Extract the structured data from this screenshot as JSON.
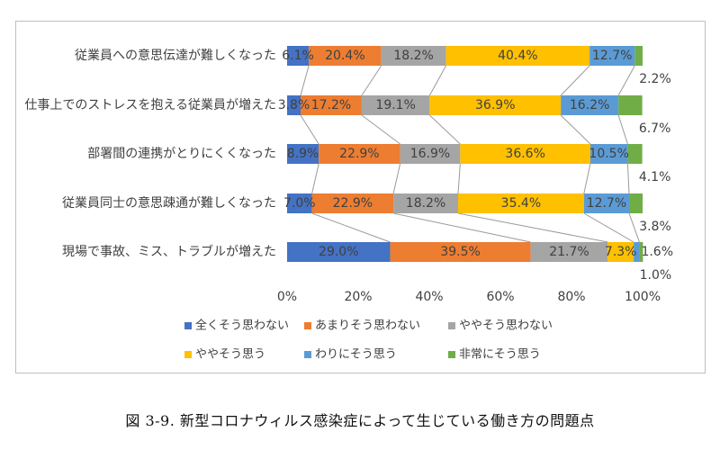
{
  "chart_data": {
    "type": "bar",
    "stacked": true,
    "orientation": "horizontal",
    "percent": true,
    "categories": [
      "従業員への意思伝達が難しくなった",
      "仕事上でのストレスを抱える従業員が増えた",
      "部署間の連携がとりにくくなった",
      "従業員同士の意思疎通が難しくなった",
      "現場で事故、ミス、トラブルが増えた"
    ],
    "series": [
      {
        "name": "全くそう思わない",
        "color": "#4472C4",
        "values": [
          6.1,
          3.8,
          8.9,
          7.0,
          29.0
        ]
      },
      {
        "name": "あまりそう思わない",
        "color": "#ED7D31",
        "values": [
          20.4,
          17.2,
          22.9,
          22.9,
          39.5
        ]
      },
      {
        "name": "ややそう思わない",
        "color": "#A5A5A5",
        "values": [
          18.2,
          19.1,
          16.9,
          18.2,
          21.7
        ]
      },
      {
        "name": "ややそう思う",
        "color": "#FFC000",
        "values": [
          40.4,
          36.9,
          36.6,
          35.4,
          7.3
        ]
      },
      {
        "name": "わりにそう思う",
        "color": "#5B9BD5",
        "values": [
          12.7,
          16.2,
          10.5,
          12.7,
          1.6
        ]
      },
      {
        "name": "非常にそう思う",
        "color": "#70AD47",
        "values": [
          2.2,
          6.7,
          4.1,
          3.8,
          1.0
        ]
      }
    ],
    "data_labels": [
      [
        "6.1%",
        "20.4%",
        "18.2%",
        "40.4%",
        "12.7%",
        "2.2%"
      ],
      [
        "3.8%",
        "17.2%",
        "19.1%",
        "36.9%",
        "16.2%",
        "6.7%"
      ],
      [
        "8.9%",
        "22.9%",
        "16.9%",
        "36.6%",
        "10.5%",
        "4.1%"
      ],
      [
        "7.0%",
        "22.9%",
        "18.2%",
        "35.4%",
        "12.7%",
        "3.8%"
      ],
      [
        "29.0%",
        "39.5%",
        "21.7%",
        "7.3%",
        "1.6%",
        "1.0%"
      ]
    ],
    "x_ticks": [
      "0%",
      "20%",
      "40%",
      "60%",
      "80%",
      "100%"
    ],
    "xlim": [
      0,
      100
    ],
    "grid": false,
    "legend_position": "bottom"
  },
  "caption": "図 3-9.  新型コロナウィルス感染症によって生じている働き方の問題点"
}
